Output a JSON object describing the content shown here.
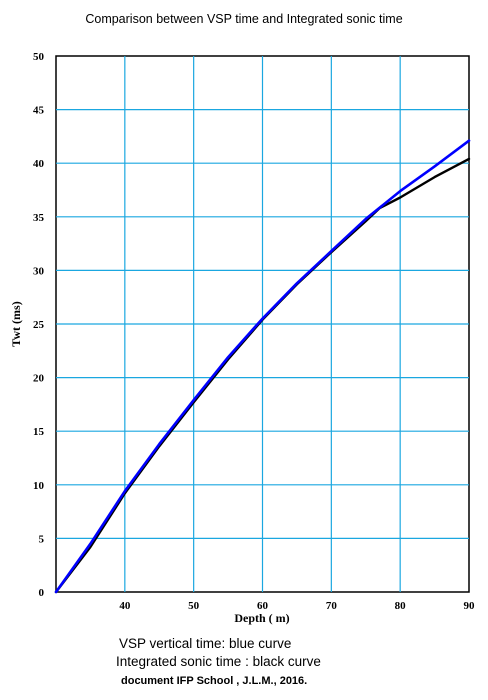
{
  "chart_data": {
    "type": "line",
    "title": "Comparison between VSP time and Integrated sonic time",
    "xlabel": "Depth ( m)",
    "ylabel": "Twt (ms)",
    "xlim": [
      30,
      90
    ],
    "ylim": [
      0,
      50
    ],
    "x_ticks": [
      40,
      50,
      60,
      70,
      80,
      90
    ],
    "y_ticks": [
      0,
      5,
      10,
      15,
      20,
      25,
      30,
      35,
      40,
      45,
      50
    ],
    "grid": true,
    "series": [
      {
        "color": "#0000ff",
        "x": [
          30,
          35,
          40,
          45,
          50,
          55,
          60,
          65,
          70,
          75,
          80,
          85,
          90
        ],
        "y": [
          0,
          4.5,
          9.4,
          13.8,
          17.9,
          21.9,
          25.5,
          28.8,
          31.8,
          34.8,
          37.4,
          39.7,
          42.1
        ]
      },
      {
        "color": "#000000",
        "x": [
          30,
          35,
          40,
          45,
          50,
          55,
          60,
          65,
          70,
          75,
          77,
          80,
          85,
          90
        ],
        "y": [
          0,
          4.2,
          9.2,
          13.6,
          17.7,
          21.7,
          25.4,
          28.7,
          31.7,
          34.6,
          35.8,
          36.8,
          38.7,
          40.4
        ]
      }
    ]
  },
  "captions": {
    "line1": "VSP vertical time: blue curve",
    "line2": "Integrated sonic time : black curve",
    "line3": "document IFP School , J.L.M., 2016."
  }
}
